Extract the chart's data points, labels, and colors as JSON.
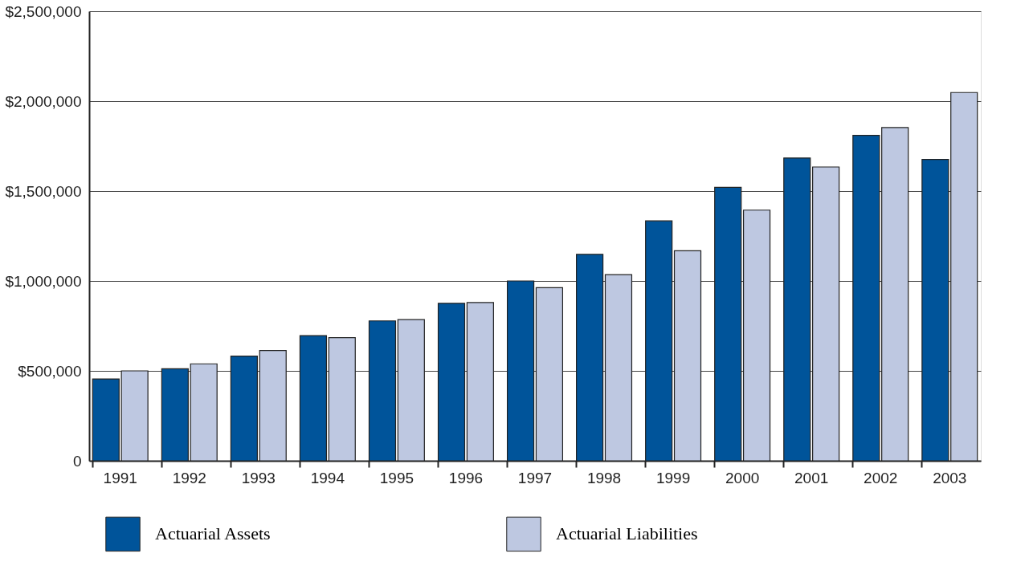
{
  "chart_data": {
    "type": "bar",
    "categories": [
      "1991",
      "1992",
      "1993",
      "1994",
      "1995",
      "1996",
      "1997",
      "1998",
      "1999",
      "2000",
      "2001",
      "2002",
      "2003"
    ],
    "series": [
      {
        "name": "Actuarial Assets",
        "color": "#00549a",
        "values": [
          455000,
          512000,
          582000,
          696000,
          778000,
          876000,
          1000000,
          1148000,
          1334000,
          1521000,
          1684000,
          1810000,
          1676000
        ]
      },
      {
        "name": "Actuarial Liabilities",
        "color": "#bec8e1",
        "values": [
          500000,
          539000,
          613000,
          685000,
          785000,
          880000,
          963000,
          1035000,
          1168000,
          1394000,
          1634000,
          1853000,
          2048000
        ]
      }
    ],
    "ylim": [
      0,
      2500000
    ],
    "yticks": [
      {
        "value": 0,
        "label": "0"
      },
      {
        "value": 500000,
        "label": "$500,000"
      },
      {
        "value": 1000000,
        "label": "$1,000,000"
      },
      {
        "value": 1500000,
        "label": "$1,500,000"
      },
      {
        "value": 2000000,
        "label": "$2,000,000"
      },
      {
        "value": 2500000,
        "label": "$2,500,000"
      }
    ],
    "grid": "y",
    "legend": "bottom"
  }
}
